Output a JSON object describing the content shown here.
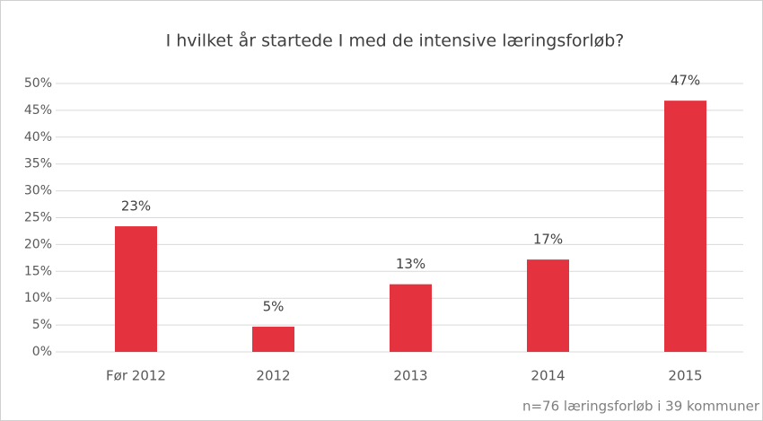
{
  "chart_data": {
    "type": "bar",
    "title": "I hvilket år startede I med de intensive læringsforløb?",
    "categories": [
      "Før 2012",
      "2012",
      "2013",
      "2014",
      "2015"
    ],
    "values": [
      23.4,
      4.7,
      12.6,
      17.2,
      46.8
    ],
    "value_labels": [
      "23%",
      "5%",
      "13%",
      "17%",
      "47%"
    ],
    "color": "#e5323f",
    "ylim": [
      0,
      50
    ],
    "yticks": [
      {
        "value": 0,
        "label": "0%"
      },
      {
        "value": 5,
        "label": "5%"
      },
      {
        "value": 10,
        "label": "10%"
      },
      {
        "value": 15,
        "label": "15%"
      },
      {
        "value": 20,
        "label": "20%"
      },
      {
        "value": 25,
        "label": "25%"
      },
      {
        "value": 30,
        "label": "30%"
      },
      {
        "value": 35,
        "label": "35%"
      },
      {
        "value": 40,
        "label": "40%"
      },
      {
        "value": 45,
        "label": "45%"
      },
      {
        "value": 50,
        "label": "50%"
      }
    ],
    "grid": true,
    "note": "n=76 læringsforløb i 39 kommuner"
  }
}
